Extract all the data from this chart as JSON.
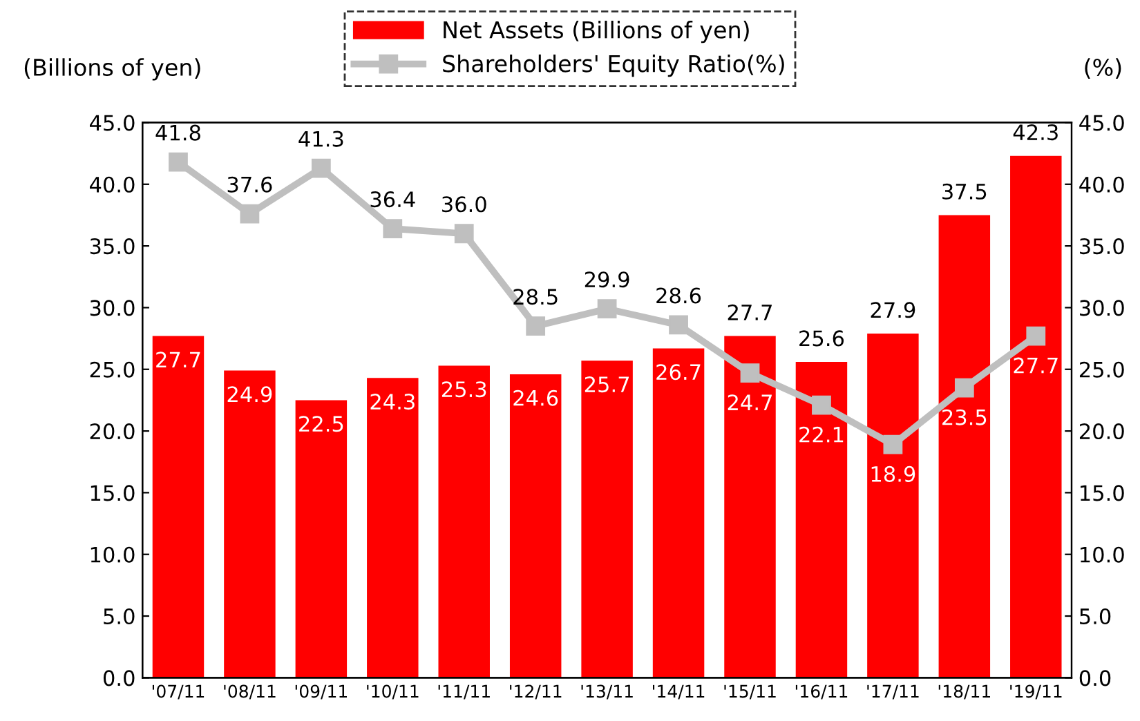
{
  "chart_data": {
    "type": "bar",
    "categories": [
      "'07/11",
      "'08/11",
      "'09/11",
      "'10/11",
      "'11/11",
      "'12/11",
      "'13/11",
      "'14/11",
      "'15/11",
      "'16/11",
      "'17/11",
      "'18/11",
      "'19/11"
    ],
    "series": [
      {
        "name": "Net Assets (Billions of yen)",
        "color": "#ff0000",
        "values": [
          27.7,
          24.9,
          22.5,
          24.3,
          25.3,
          24.6,
          25.7,
          26.7,
          27.7,
          25.6,
          27.9,
          37.5,
          42.3
        ],
        "value_labels": [
          "27.7",
          "24.9",
          "22.5",
          "24.3",
          "25.3",
          "24.6",
          "25.7",
          "26.7",
          "27.7",
          "25.6",
          "27.9",
          "37.5",
          "42.3"
        ]
      },
      {
        "name": "Shareholders' Equity Ratio(%)",
        "type": "line",
        "axis": "y2",
        "color": "#bfbfbf",
        "marker": "square",
        "line_style": "solid",
        "values": [
          41.8,
          37.6,
          41.3,
          36.4,
          36.0,
          28.5,
          29.9,
          28.6,
          24.7,
          22.1,
          18.9,
          23.5,
          27.7
        ],
        "value_labels": [
          "41.8",
          "37.6",
          "41.3",
          "36.4",
          "36.0",
          "28.5",
          "29.9",
          "28.6",
          "24.7",
          "22.1",
          "18.9",
          "23.5",
          "27.7"
        ]
      }
    ],
    "ylabel": "(Billions of yen)",
    "y2label": "(%)",
    "ylim": [
      0,
      45
    ],
    "y2lim": [
      0,
      45
    ],
    "yticks": [
      {
        "value": 0,
        "label": "0.0"
      },
      {
        "value": 5,
        "label": "5.0"
      },
      {
        "value": 10,
        "label": "10.0"
      },
      {
        "value": 15,
        "label": "15.0"
      },
      {
        "value": 20,
        "label": "20.0"
      },
      {
        "value": 25,
        "label": "25.0"
      },
      {
        "value": 30,
        "label": "30.0"
      },
      {
        "value": 35,
        "label": "35.0"
      },
      {
        "value": 40,
        "label": "40.0"
      },
      {
        "value": 45,
        "label": "45.0"
      }
    ],
    "y2ticks": [
      {
        "value": 0,
        "label": "0.0"
      },
      {
        "value": 5,
        "label": "5.0"
      },
      {
        "value": 10,
        "label": "10.0"
      },
      {
        "value": 15,
        "label": "15.0"
      },
      {
        "value": 20,
        "label": "20.0"
      },
      {
        "value": 25,
        "label": "25.0"
      },
      {
        "value": 30,
        "label": "30.0"
      },
      {
        "value": 35,
        "label": "35.0"
      },
      {
        "value": 40,
        "label": "40.0"
      },
      {
        "value": 45,
        "label": "45.0"
      }
    ],
    "legend": "top",
    "grid": false
  }
}
